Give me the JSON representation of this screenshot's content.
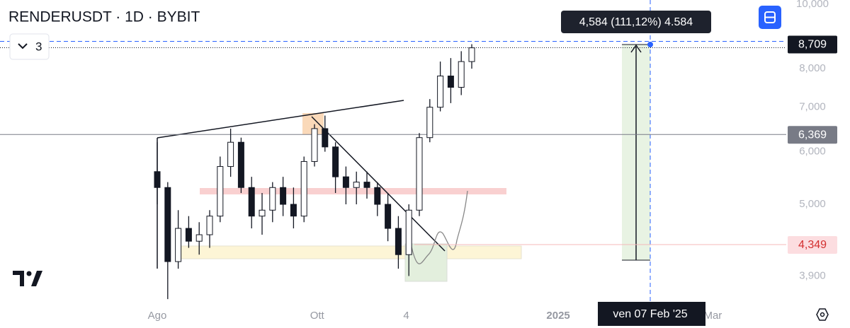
{
  "chart_data": {
    "type": "candlestick",
    "title": "RENDERUSDT · 1D · BYBIT",
    "indicator_count": "3",
    "log_scale": true,
    "xlim": [
      -60,
      240
    ],
    "ylim": [
      3.54,
      10.15
    ],
    "yticks": [
      {
        "value": 10,
        "label": "10,000"
      },
      {
        "value": 8,
        "label": "8,000"
      },
      {
        "value": 7,
        "label": "7,000"
      },
      {
        "value": 6,
        "label": "6,000"
      },
      {
        "value": 5,
        "label": "5,000"
      },
      {
        "value": 3.9,
        "label": "3,900"
      }
    ],
    "xticks": [
      {
        "value": 0,
        "label": "Ago"
      },
      {
        "value": 61,
        "label": "Ott"
      },
      {
        "value": 95,
        "label": "4"
      },
      {
        "value": 153,
        "label": "2025"
      },
      {
        "value": 212,
        "label": "Mar"
      }
    ],
    "x": [
      0,
      4,
      8,
      12,
      16,
      20,
      24,
      28,
      32,
      36,
      40,
      44,
      48,
      52,
      56,
      60,
      64,
      68,
      72,
      76,
      80,
      84,
      88,
      92,
      96,
      100,
      104,
      108,
      112,
      116,
      120
    ],
    "open": [
      5.6,
      5.3,
      4.1,
      4.6,
      4.4,
      4.5,
      4.8,
      5.7,
      6.2,
      5.3,
      4.8,
      4.9,
      5.3,
      5.0,
      4.8,
      5.8,
      6.5,
      6.1,
      5.5,
      5.3,
      5.4,
      5.3,
      5.0,
      4.6,
      4.2,
      4.9,
      6.3,
      7.0,
      7.8,
      7.5,
      8.2
    ],
    "high": [
      6.2,
      5.4,
      4.9,
      4.8,
      4.7,
      4.9,
      5.9,
      6.5,
      6.3,
      5.5,
      5.2,
      5.4,
      5.5,
      5.3,
      5.9,
      6.6,
      6.8,
      6.2,
      5.7,
      5.6,
      5.6,
      5.4,
      5.2,
      4.8,
      5.0,
      6.4,
      7.2,
      8.2,
      8.3,
      8.5,
      8.709
    ],
    "low": [
      5.0,
      3.6,
      4.0,
      4.3,
      4.2,
      4.3,
      4.7,
      5.5,
      5.2,
      4.6,
      4.5,
      4.7,
      4.8,
      4.6,
      4.7,
      5.7,
      6.0,
      5.2,
      5.0,
      5.0,
      5.1,
      4.8,
      4.4,
      4.0,
      3.9,
      4.8,
      6.2,
      6.9,
      7.1,
      7.3,
      8.0
    ],
    "close": [
      5.3,
      4.1,
      4.6,
      4.4,
      4.5,
      4.8,
      5.7,
      6.2,
      5.3,
      4.8,
      4.9,
      5.3,
      5.0,
      4.8,
      5.8,
      6.5,
      6.1,
      5.5,
      5.3,
      5.4,
      5.3,
      5.0,
      4.6,
      4.2,
      4.9,
      6.3,
      7.0,
      7.8,
      7.5,
      8.2,
      8.6
    ],
    "price_tags": [
      {
        "value": 8.709,
        "label": "8,709",
        "color": "#131722",
        "text_color": "#ffffff"
      },
      {
        "value": 6.369,
        "label": "6,369",
        "color": "#787b86",
        "text_color": "#ffffff"
      },
      {
        "value": 4.349,
        "label": "4,349",
        "color": "#fcdde0",
        "text_color": "#d32f2f"
      }
    ],
    "measure_label": "4,584 (111,12%) 4.584",
    "crosshair_date": "ven 07 Feb '25"
  }
}
